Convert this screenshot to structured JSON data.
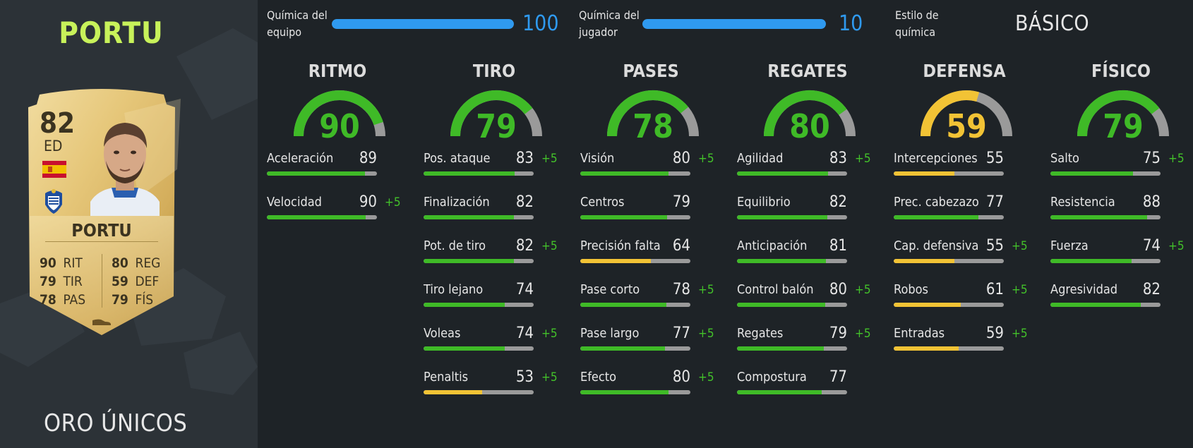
{
  "player": {
    "name": "PORTU",
    "rarity": "ORO ÚNICOS"
  },
  "card": {
    "rating": "82",
    "position": "ED",
    "name": "PORTU",
    "stats_left": [
      {
        "value": "90",
        "label": "RIT"
      },
      {
        "value": "79",
        "label": "TIR"
      },
      {
        "value": "78",
        "label": "PAS"
      }
    ],
    "stats_right": [
      {
        "value": "80",
        "label": "REG"
      },
      {
        "value": "59",
        "label": "DEF"
      },
      {
        "value": "79",
        "label": "FÍS"
      }
    ]
  },
  "chemistry": {
    "team_label_1": "Química del",
    "team_label_2": "equipo",
    "team_value": "100",
    "team_fraction": 1.0,
    "player_label_1": "Química del",
    "player_label_2": "jugador",
    "player_value": "10",
    "player_fraction": 1.0,
    "style_label_1": "Estilo de",
    "style_label_2": "química",
    "style_value": "BÁSICO"
  },
  "colors": {
    "green": "#3fba27",
    "yellow": "#f2c335",
    "gray": "#9a9a9a",
    "blue": "#2f9af0",
    "name_green": "#c8f25a",
    "bonus_green": "#43c22a"
  },
  "categories": [
    {
      "title": "RITMO",
      "value": "90",
      "level": 90,
      "color": "green",
      "stats": [
        {
          "label": "Aceleración",
          "value": "89",
          "bonus": "",
          "color": "green"
        },
        {
          "label": "Velocidad",
          "value": "90",
          "bonus": "+5",
          "color": "green"
        }
      ]
    },
    {
      "title": "TIRO",
      "value": "79",
      "level": 79,
      "color": "green",
      "stats": [
        {
          "label": "Pos. ataque",
          "value": "83",
          "bonus": "+5",
          "color": "green"
        },
        {
          "label": "Finalización",
          "value": "82",
          "bonus": "",
          "color": "green"
        },
        {
          "label": "Pot. de tiro",
          "value": "82",
          "bonus": "+5",
          "color": "green"
        },
        {
          "label": "Tiro lejano",
          "value": "74",
          "bonus": "",
          "color": "green"
        },
        {
          "label": "Voleas",
          "value": "74",
          "bonus": "+5",
          "color": "green"
        },
        {
          "label": "Penaltis",
          "value": "53",
          "bonus": "+5",
          "color": "yellow"
        }
      ]
    },
    {
      "title": "PASES",
      "value": "78",
      "level": 78,
      "color": "green",
      "stats": [
        {
          "label": "Visión",
          "value": "80",
          "bonus": "+5",
          "color": "green"
        },
        {
          "label": "Centros",
          "value": "79",
          "bonus": "",
          "color": "green"
        },
        {
          "label": "Precisión falta",
          "value": "64",
          "bonus": "",
          "color": "yellow"
        },
        {
          "label": "Pase corto",
          "value": "78",
          "bonus": "+5",
          "color": "green"
        },
        {
          "label": "Pase largo",
          "value": "77",
          "bonus": "+5",
          "color": "green"
        },
        {
          "label": "Efecto",
          "value": "80",
          "bonus": "+5",
          "color": "green"
        }
      ]
    },
    {
      "title": "REGATES",
      "value": "80",
      "level": 80,
      "color": "green",
      "stats": [
        {
          "label": "Agilidad",
          "value": "83",
          "bonus": "+5",
          "color": "green"
        },
        {
          "label": "Equilibrio",
          "value": "82",
          "bonus": "",
          "color": "green"
        },
        {
          "label": "Anticipación",
          "value": "81",
          "bonus": "",
          "color": "green"
        },
        {
          "label": "Control balón",
          "value": "80",
          "bonus": "+5",
          "color": "green"
        },
        {
          "label": "Regates",
          "value": "79",
          "bonus": "+5",
          "color": "green"
        },
        {
          "label": "Compostura",
          "value": "77",
          "bonus": "",
          "color": "green"
        }
      ]
    },
    {
      "title": "DEFENSA",
      "value": "59",
      "level": 59,
      "color": "yellow",
      "stats": [
        {
          "label": "Intercepciones",
          "value": "55",
          "bonus": "",
          "color": "yellow"
        },
        {
          "label": "Prec. cabezazo",
          "value": "77",
          "bonus": "",
          "color": "green"
        },
        {
          "label": "Cap. defensiva",
          "value": "55",
          "bonus": "+5",
          "color": "yellow"
        },
        {
          "label": "Robos",
          "value": "61",
          "bonus": "+5",
          "color": "yellow"
        },
        {
          "label": "Entradas",
          "value": "59",
          "bonus": "+5",
          "color": "yellow"
        }
      ]
    },
    {
      "title": "FÍSICO",
      "value": "79",
      "level": 79,
      "color": "green",
      "stats": [
        {
          "label": "Salto",
          "value": "75",
          "bonus": "+5",
          "color": "green"
        },
        {
          "label": "Resistencia",
          "value": "88",
          "bonus": "",
          "color": "green"
        },
        {
          "label": "Fuerza",
          "value": "74",
          "bonus": "+5",
          "color": "green"
        },
        {
          "label": "Agresividad",
          "value": "82",
          "bonus": "",
          "color": "green"
        }
      ]
    }
  ]
}
